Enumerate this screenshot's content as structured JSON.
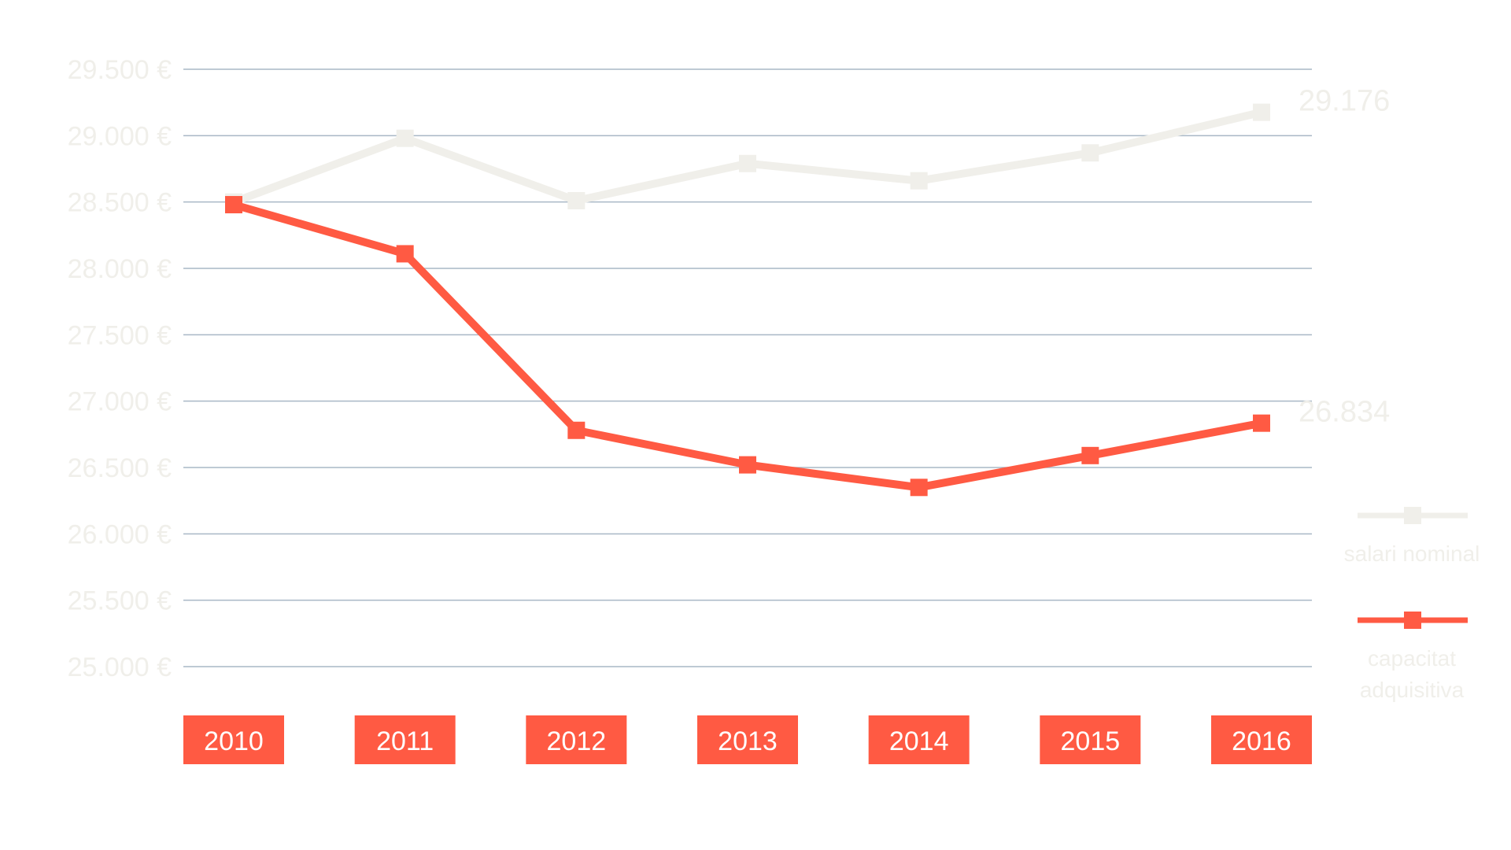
{
  "colors": {
    "nominal": "#f0efea",
    "capacitat": "#ff5a43",
    "grid": "#a9b8c6",
    "tick_text": "#f0efea",
    "year_box": "#ff5a43",
    "year_text": "#ffffff"
  },
  "chart_data": {
    "type": "line",
    "x": [
      "2010",
      "2011",
      "2012",
      "2013",
      "2014",
      "2015",
      "2016"
    ],
    "series": [
      {
        "name": "salari nominal",
        "values": [
          28500,
          28980,
          28510,
          28790,
          28660,
          28870,
          29176
        ],
        "end_label": "29.176"
      },
      {
        "name": "capacitat adquisitiva",
        "values": [
          28480,
          28110,
          26780,
          26520,
          26350,
          26590,
          26834
        ],
        "end_label": "26.834"
      }
    ],
    "ylim": [
      25000,
      29500
    ],
    "yticks": [
      25000,
      25500,
      26000,
      26500,
      27000,
      27500,
      28000,
      28500,
      29000,
      29500
    ],
    "ytick_labels": [
      "25.000 €",
      "25.500 €",
      "26.000 €",
      "26.500 €",
      "27.000 €",
      "27.500 €",
      "28.000 €",
      "28.500 €",
      "29.000 €",
      "29.500 €"
    ],
    "grid": true,
    "legend": "right",
    "legend_entries": [
      {
        "name": "salari nominal",
        "lines": [
          "salari nominal"
        ]
      },
      {
        "name": "capacitat adquisitiva",
        "lines": [
          "capacitat",
          "adquisitiva"
        ]
      }
    ]
  }
}
